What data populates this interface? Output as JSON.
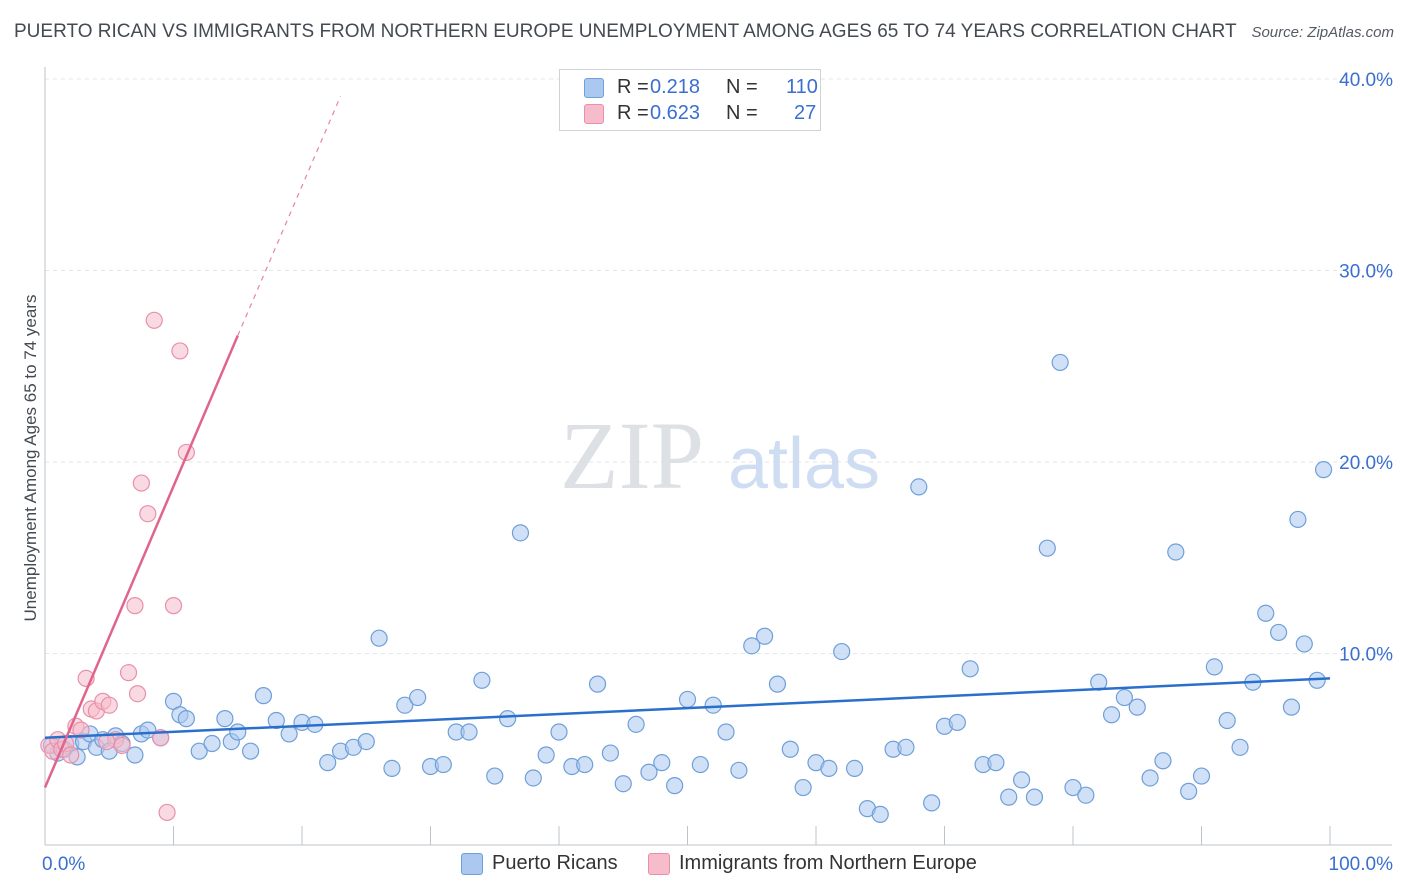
{
  "header": {
    "title": "PUERTO RICAN VS IMMIGRANTS FROM NORTHERN EUROPE UNEMPLOYMENT AMONG AGES 65 TO 74 YEARS CORRELATION CHART",
    "source": "Source: ZipAtlas.com"
  },
  "watermark": {
    "zip": "ZIP",
    "atlas": "atlas"
  },
  "legend": {
    "r_label": "R =",
    "n_label": "N =",
    "series": [
      {
        "name": "Puerto Ricans",
        "r": "0.218",
        "n": "110"
      },
      {
        "name": "Immigrants from Northern Europe",
        "r": "0.623",
        "n": "27"
      }
    ]
  },
  "colors": {
    "blue_fill": "#aac8f0",
    "blue_stroke": "#6f9fd8",
    "blue_line": "#2a6fcc",
    "pink_fill": "#f6bccb",
    "pink_stroke": "#e890aa",
    "pink_line": "#e0648c",
    "axis_text": "#3a6fd0",
    "grid": "#e3e6ea"
  },
  "chart_data": {
    "type": "scatter",
    "title": "PUERTO RICAN VS IMMIGRANTS FROM NORTHERN EUROPE UNEMPLOYMENT AMONG AGES 65 TO 74 YEARS CORRELATION CHART",
    "xlabel": "",
    "ylabel": "Unemployment Among Ages 65 to 74 years",
    "xlim": [
      0,
      100
    ],
    "ylim": [
      0,
      40
    ],
    "x_tick_labels": [
      "0.0%",
      "100.0%"
    ],
    "y_ticks": [
      10,
      20,
      30,
      40
    ],
    "y_tick_labels": [
      "10.0%",
      "20.0%",
      "30.0%",
      "40.0%"
    ],
    "legend_position": "top-center",
    "series": [
      {
        "name": "Puerto Ricans",
        "color": "blue",
        "trend": {
          "x0": 0,
          "y0": 5.6,
          "x1": 100,
          "y1": 8.7
        },
        "points": [
          [
            0.5,
            5.2
          ],
          [
            1,
            4.8
          ],
          [
            1.5,
            5.0
          ],
          [
            2,
            5.3
          ],
          [
            2.5,
            4.6
          ],
          [
            3,
            5.4
          ],
          [
            3.5,
            5.8
          ],
          [
            4,
            5.1
          ],
          [
            4.5,
            5.5
          ],
          [
            5,
            4.9
          ],
          [
            5.5,
            5.7
          ],
          [
            6,
            5.3
          ],
          [
            7,
            4.7
          ],
          [
            7.5,
            5.8
          ],
          [
            8,
            6.0
          ],
          [
            9,
            5.6
          ],
          [
            10,
            7.5
          ],
          [
            10.5,
            6.8
          ],
          [
            11,
            6.6
          ],
          [
            12,
            4.9
          ],
          [
            13,
            5.3
          ],
          [
            14,
            6.6
          ],
          [
            14.5,
            5.4
          ],
          [
            15,
            5.9
          ],
          [
            16,
            4.9
          ],
          [
            17,
            7.8
          ],
          [
            18,
            6.5
          ],
          [
            19,
            5.8
          ],
          [
            20,
            6.4
          ],
          [
            21,
            6.3
          ],
          [
            22,
            4.3
          ],
          [
            23,
            4.9
          ],
          [
            24,
            5.1
          ],
          [
            25,
            5.4
          ],
          [
            26,
            10.8
          ],
          [
            27,
            4.0
          ],
          [
            28,
            7.3
          ],
          [
            29,
            7.7
          ],
          [
            30,
            4.1
          ],
          [
            31,
            4.2
          ],
          [
            32,
            5.9
          ],
          [
            33,
            5.9
          ],
          [
            34,
            8.6
          ],
          [
            35,
            3.6
          ],
          [
            36,
            6.6
          ],
          [
            37,
            16.3
          ],
          [
            38,
            3.5
          ],
          [
            39,
            4.7
          ],
          [
            40,
            5.9
          ],
          [
            41,
            4.1
          ],
          [
            42,
            4.2
          ],
          [
            43,
            8.4
          ],
          [
            44,
            4.8
          ],
          [
            45,
            3.2
          ],
          [
            46,
            6.3
          ],
          [
            47,
            3.8
          ],
          [
            48,
            4.3
          ],
          [
            49,
            3.1
          ],
          [
            50,
            7.6
          ],
          [
            51,
            4.2
          ],
          [
            52,
            7.3
          ],
          [
            53,
            5.9
          ],
          [
            54,
            3.9
          ],
          [
            55,
            10.4
          ],
          [
            56,
            10.9
          ],
          [
            57,
            8.4
          ],
          [
            58,
            5.0
          ],
          [
            59,
            3.0
          ],
          [
            60,
            4.3
          ],
          [
            61,
            4.0
          ],
          [
            62,
            10.1
          ],
          [
            63,
            4.0
          ],
          [
            64,
            1.9
          ],
          [
            65,
            1.6
          ],
          [
            66,
            5.0
          ],
          [
            67,
            5.1
          ],
          [
            68,
            18.7
          ],
          [
            69,
            2.2
          ],
          [
            70,
            6.2
          ],
          [
            71,
            6.4
          ],
          [
            72,
            9.2
          ],
          [
            73,
            4.2
          ],
          [
            74,
            4.3
          ],
          [
            75,
            2.5
          ],
          [
            76,
            3.4
          ],
          [
            77,
            2.5
          ],
          [
            78,
            15.5
          ],
          [
            79,
            25.2
          ],
          [
            80,
            3.0
          ],
          [
            81,
            2.6
          ],
          [
            82,
            8.5
          ],
          [
            83,
            6.8
          ],
          [
            84,
            7.7
          ],
          [
            85,
            7.2
          ],
          [
            86,
            3.5
          ],
          [
            87,
            4.4
          ],
          [
            88,
            15.3
          ],
          [
            89,
            2.8
          ],
          [
            90,
            3.6
          ],
          [
            91,
            9.3
          ],
          [
            92,
            6.5
          ],
          [
            93,
            5.1
          ],
          [
            94,
            8.5
          ],
          [
            95,
            12.1
          ],
          [
            96,
            11.1
          ],
          [
            97,
            7.2
          ],
          [
            97.5,
            17.0
          ],
          [
            98,
            10.5
          ],
          [
            99,
            8.6
          ],
          [
            99.5,
            19.6
          ]
        ]
      },
      {
        "name": "Immigrants from Northern Europe",
        "color": "pink",
        "trend": {
          "x0": 0,
          "y0": 3.0,
          "x1": 15,
          "y1": 26.6,
          "dash_to_x": 23,
          "dash_to_y": 39.1
        },
        "points": [
          [
            0.3,
            5.2
          ],
          [
            0.6,
            4.9
          ],
          [
            1,
            5.5
          ],
          [
            1.3,
            5.0
          ],
          [
            1.6,
            5.3
          ],
          [
            2,
            4.7
          ],
          [
            2.4,
            6.2
          ],
          [
            2.8,
            6.0
          ],
          [
            3.2,
            8.7
          ],
          [
            3.6,
            7.1
          ],
          [
            4,
            7.0
          ],
          [
            4.5,
            7.5
          ],
          [
            5,
            7.3
          ],
          [
            5.5,
            5.5
          ],
          [
            6,
            5.2
          ],
          [
            6.5,
            9.0
          ],
          [
            7,
            12.5
          ],
          [
            7.5,
            18.9
          ],
          [
            8,
            17.3
          ],
          [
            8.5,
            27.4
          ],
          [
            9,
            5.6
          ],
          [
            9.5,
            1.7
          ],
          [
            10,
            12.5
          ],
          [
            10.5,
            25.8
          ],
          [
            11,
            20.5
          ],
          [
            7.2,
            7.9
          ],
          [
            4.8,
            5.4
          ]
        ]
      }
    ]
  }
}
